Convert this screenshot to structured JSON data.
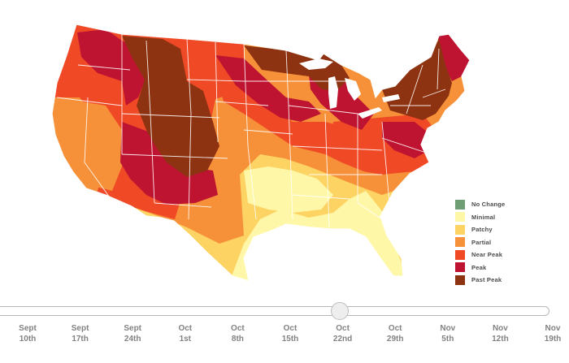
{
  "legend": {
    "items": [
      {
        "label": "No Change",
        "color": "#6f9e74"
      },
      {
        "label": "Minimal",
        "color": "#fff7a8"
      },
      {
        "label": "Patchy",
        "color": "#fdd363"
      },
      {
        "label": "Partial",
        "color": "#f6913a"
      },
      {
        "label": "Near Peak",
        "color": "#ef4926"
      },
      {
        "label": "Peak",
        "color": "#be1431"
      },
      {
        "label": "Past Peak",
        "color": "#8e3311"
      }
    ]
  },
  "timeline": {
    "selected": "Oct 22nd",
    "ticks": [
      {
        "line1": "Sept",
        "line2": "10th"
      },
      {
        "line1": "Sept",
        "line2": "17th"
      },
      {
        "line1": "Sept",
        "line2": "24th"
      },
      {
        "line1": "Oct",
        "line2": "1st"
      },
      {
        "line1": "Oct",
        "line2": "8th"
      },
      {
        "line1": "Oct",
        "line2": "15th"
      },
      {
        "line1": "Oct",
        "line2": "22nd"
      },
      {
        "line1": "Oct",
        "line2": "29th"
      },
      {
        "line1": "Nov",
        "line2": "5th"
      },
      {
        "line1": "Nov",
        "line2": "12th"
      },
      {
        "line1": "Nov",
        "line2": "19th"
      }
    ]
  },
  "map": {
    "colors": {
      "minimal": "#fff7a8",
      "patchy": "#fdd363",
      "partial": "#f6913a",
      "near_peak": "#ef4926",
      "peak": "#be1431",
      "past_peak": "#8e3311",
      "border": "#ffffff"
    }
  }
}
